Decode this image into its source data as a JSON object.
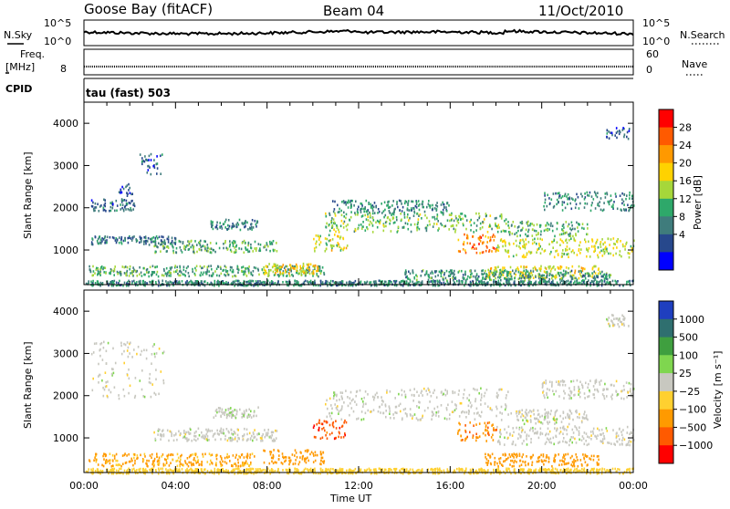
{
  "header": {
    "station": "Goose Bay (fitACF)",
    "beam": "Beam 04",
    "date": "11/Oct/2010"
  },
  "strip_nsky": {
    "left_label": "N.Sky",
    "left_ticks": [
      "10^5",
      "10^0"
    ],
    "right_ticks": [
      "10^5",
      "10^0"
    ],
    "right_label": "N.Search"
  },
  "strip_freq": {
    "left_label_top": "Freq.",
    "left_label_unit": "[MHz]",
    "left_ticks": [
      "8"
    ],
    "right_ticks": [
      "60",
      "0"
    ],
    "right_label": "Nave"
  },
  "cpid": {
    "label": "CPID",
    "value": "tau (fast) 503"
  },
  "time_axis": {
    "xlabel": "Time UT",
    "ticks": [
      "00:00",
      "04:00",
      "08:00",
      "12:00",
      "16:00",
      "20:00",
      "00:00"
    ],
    "hours": [
      0,
      4,
      8,
      12,
      16,
      20,
      24
    ]
  },
  "chart_data": [
    {
      "type": "heatmap",
      "name": "power",
      "ylabel": "Slant Range [km]",
      "ylim": [
        180,
        4500
      ],
      "yticks": [
        "4000",
        "3000",
        "2000",
        "1000"
      ],
      "ytick_values": [
        4000,
        3000,
        2000,
        1000
      ],
      "xlim_hours": [
        0,
        24
      ],
      "colorbar": {
        "label": "Power [dB]",
        "ticks": [
          "28",
          "24",
          "20",
          "16",
          "12",
          "8",
          "4"
        ],
        "colors": [
          "#ff0000",
          "#ff5a00",
          "#ff9900",
          "#ffd200",
          "#a6d73a",
          "#2ea86a",
          "#3f7c7c",
          "#27488c",
          "#0000ff"
        ]
      },
      "regions": [
        {
          "t0": 0.3,
          "t1": 2.2,
          "r0": 1950,
          "r1": 2250,
          "value": 6
        },
        {
          "t0": 2.4,
          "t1": 3.4,
          "r0": 2800,
          "r1": 3300,
          "value": 6
        },
        {
          "t0": 1.5,
          "t1": 2.2,
          "r0": 2300,
          "r1": 2600,
          "value": 5
        },
        {
          "t0": 3.0,
          "t1": 8.4,
          "r0": 950,
          "r1": 1250,
          "value": 12
        },
        {
          "t0": 5.5,
          "t1": 7.6,
          "r0": 1500,
          "r1": 1750,
          "value": 8
        },
        {
          "t0": 0.3,
          "t1": 4.0,
          "r0": 1150,
          "r1": 1350,
          "value": 7
        },
        {
          "t0": 0.2,
          "t1": 10.5,
          "r0": 400,
          "r1": 650,
          "value": 11
        },
        {
          "t0": 7.8,
          "t1": 10.2,
          "r0": 450,
          "r1": 700,
          "value": 20
        },
        {
          "t0": 10.0,
          "t1": 11.5,
          "r0": 1000,
          "r1": 1400,
          "value": 18
        },
        {
          "t0": 10.5,
          "t1": 18.5,
          "r0": 1450,
          "r1": 1900,
          "value": 14
        },
        {
          "t0": 10.8,
          "t1": 16.0,
          "r0": 1900,
          "r1": 2200,
          "value": 9
        },
        {
          "t0": 16.3,
          "t1": 18.0,
          "r0": 950,
          "r1": 1400,
          "value": 26
        },
        {
          "t0": 17.5,
          "t1": 22.5,
          "r0": 350,
          "r1": 650,
          "value": 19
        },
        {
          "t0": 18.0,
          "t1": 24.0,
          "r0": 850,
          "r1": 1300,
          "value": 17
        },
        {
          "t0": 18.5,
          "t1": 22.0,
          "r0": 1350,
          "r1": 1700,
          "value": 13
        },
        {
          "t0": 20.0,
          "t1": 24.0,
          "r0": 1950,
          "r1": 2400,
          "value": 9
        },
        {
          "t0": 22.8,
          "t1": 23.8,
          "r0": 3650,
          "r1": 3950,
          "value": 6
        },
        {
          "t0": 14.0,
          "t1": 23.0,
          "r0": 300,
          "r1": 550,
          "value": 10
        },
        {
          "t0": 0.0,
          "t1": 24.0,
          "r0": 180,
          "r1": 300,
          "value": 9
        }
      ]
    },
    {
      "type": "heatmap",
      "name": "velocity",
      "ylabel": "Slant Range [km]",
      "ylim": [
        180,
        4500
      ],
      "yticks": [
        "4000",
        "3000",
        "2000",
        "1000"
      ],
      "ytick_values": [
        4000,
        3000,
        2000,
        1000
      ],
      "xlim_hours": [
        0,
        24
      ],
      "colorbar": {
        "label": "Velocity [m s⁻¹]",
        "ticks": [
          "1000",
          "500",
          "100",
          "25",
          "−25",
          "−100",
          "−500",
          "−1000"
        ],
        "colors": [
          "#1f3fbf",
          "#2f6f6f",
          "#3f9f3f",
          "#7fd64f",
          "#c8c8c0",
          "#ffd030",
          "#ff9a00",
          "#ff5a00",
          "#ff0000"
        ]
      },
      "regions": [
        {
          "t0": 0.3,
          "t1": 3.5,
          "r0": 1950,
          "r1": 3300,
          "value": 0
        },
        {
          "t0": 3.0,
          "t1": 8.4,
          "r0": 950,
          "r1": 1250,
          "value": 0
        },
        {
          "t0": 5.5,
          "t1": 7.6,
          "r0": 1500,
          "r1": 1750,
          "value": 10
        },
        {
          "t0": 0.2,
          "t1": 7.5,
          "r0": 350,
          "r1": 650,
          "value": -120
        },
        {
          "t0": 7.8,
          "t1": 10.5,
          "r0": 400,
          "r1": 750,
          "value": -300
        },
        {
          "t0": 10.0,
          "t1": 11.5,
          "r0": 1000,
          "r1": 1450,
          "value": -800
        },
        {
          "t0": 10.5,
          "t1": 18.5,
          "r0": 1450,
          "r1": 2200,
          "value": 0
        },
        {
          "t0": 16.3,
          "t1": 18.0,
          "r0": 950,
          "r1": 1400,
          "value": -450
        },
        {
          "t0": 17.5,
          "t1": 22.5,
          "r0": 350,
          "r1": 650,
          "value": -250
        },
        {
          "t0": 18.0,
          "t1": 24.0,
          "r0": 850,
          "r1": 1300,
          "value": 0
        },
        {
          "t0": 18.5,
          "t1": 22.0,
          "r0": 1350,
          "r1": 1700,
          "value": 0
        },
        {
          "t0": 20.0,
          "t1": 24.0,
          "r0": 1950,
          "r1": 2400,
          "value": 0
        },
        {
          "t0": 22.8,
          "t1": 23.8,
          "r0": 3650,
          "r1": 3950,
          "value": 0
        },
        {
          "t0": 0.0,
          "t1": 24.0,
          "r0": 180,
          "r1": 300,
          "value": -60
        }
      ]
    }
  ]
}
